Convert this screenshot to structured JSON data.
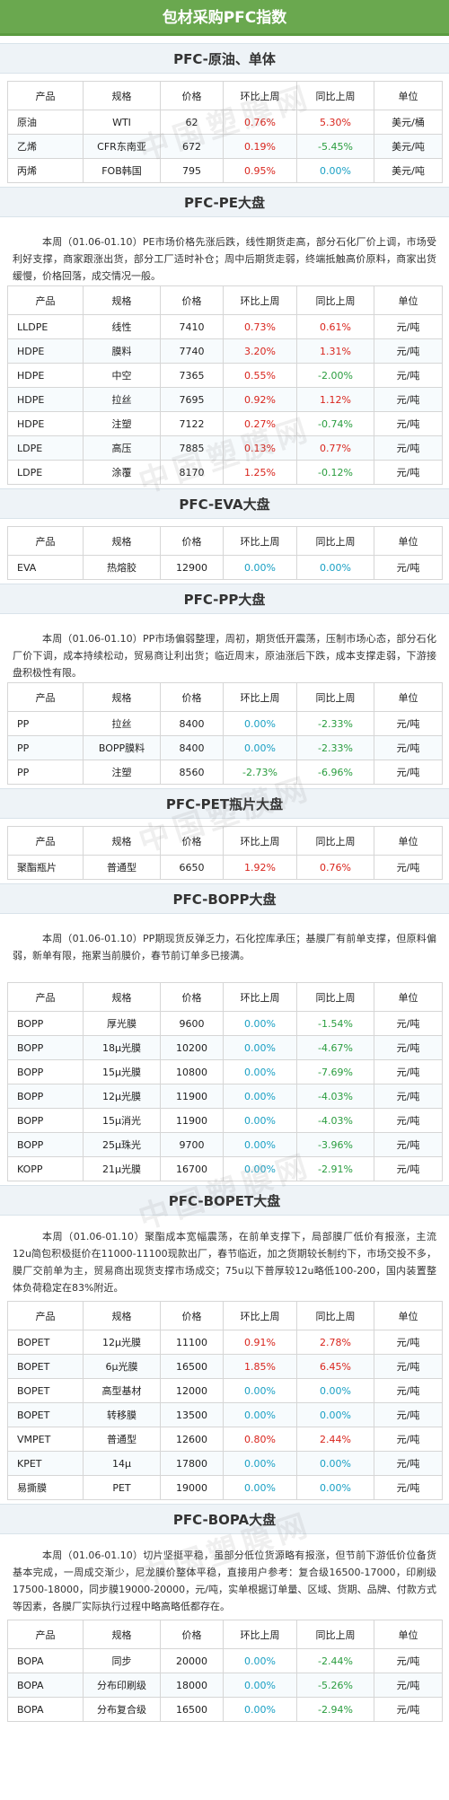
{
  "title": "包材采购PFC指数",
  "watermark_text": "中国塑膜网",
  "columns": [
    "产品",
    "规格",
    "价格",
    "环比上周",
    "同比上周",
    "单位"
  ],
  "sections": [
    {
      "title": "PFC-原油、单体",
      "para": "",
      "rows": [
        [
          "原油",
          "WTI",
          "62",
          "0.76%",
          "5.30%",
          "美元/桶"
        ],
        [
          "乙烯",
          "CFR东南亚",
          "672",
          "0.19%",
          "-5.45%",
          "美元/吨"
        ],
        [
          "丙烯",
          "FOB韩国",
          "795",
          "0.95%",
          "0.00%",
          "美元/吨"
        ]
      ]
    },
    {
      "title": "PFC-PE大盘",
      "para": "本周（01.06-01.10）PE市场价格先涨后跌，线性期货走高，部分石化厂价上调，市场受利好支撑，商家跟涨出货，部分工厂适时补仓；周中后期货走弱，终端抵触高价原料，商家出货缓慢，价格回落，成交情况一般。",
      "rows": [
        [
          "LLDPE",
          "线性",
          "7410",
          "0.73%",
          "0.61%",
          "元/吨"
        ],
        [
          "HDPE",
          "膜料",
          "7740",
          "3.20%",
          "1.31%",
          "元/吨"
        ],
        [
          "HDPE",
          "中空",
          "7365",
          "0.55%",
          "-2.00%",
          "元/吨"
        ],
        [
          "HDPE",
          "拉丝",
          "7695",
          "0.92%",
          "1.12%",
          "元/吨"
        ],
        [
          "HDPE",
          "注塑",
          "7122",
          "0.27%",
          "-0.74%",
          "元/吨"
        ],
        [
          "LDPE",
          "高压",
          "7885",
          "0.13%",
          "0.77%",
          "元/吨"
        ],
        [
          "LDPE",
          "涂覆",
          "8170",
          "1.25%",
          "-0.12%",
          "元/吨"
        ]
      ]
    },
    {
      "title": "PFC-EVA大盘",
      "para": "",
      "rows": [
        [
          "EVA",
          "热熔胶",
          "12900",
          "0.00%",
          "0.00%",
          "元/吨"
        ]
      ]
    },
    {
      "title": "PFC-PP大盘",
      "para": "本周（01.06-01.10）PP市场偏弱整理，周初，期货低开震荡，压制市场心态，部分石化厂价下调，成本持续松动，贸易商让利出货；临近周末，原油涨后下跌，成本支撑走弱，下游接盘积极性有限。",
      "rows": [
        [
          "PP",
          "拉丝",
          "8400",
          "0.00%",
          "-2.33%",
          "元/吨"
        ],
        [
          "PP",
          "BOPP膜料",
          "8400",
          "0.00%",
          "-2.33%",
          "元/吨"
        ],
        [
          "PP",
          "注塑",
          "8560",
          "-2.73%",
          "-6.96%",
          "元/吨"
        ]
      ]
    },
    {
      "title": "PFC-PET瓶片大盘",
      "para": "",
      "rows": [
        [
          "聚酯瓶片",
          "普通型",
          "6650",
          "1.92%",
          "0.76%",
          "元/吨"
        ]
      ]
    },
    {
      "title": "PFC-BOPP大盘",
      "para": "本周（01.06-01.10）PP期现货反弹乏力，石化控库承压；基膜厂有前单支撑，但原料偏弱，新单有限，拖累当前膜价，春节前订单多已接满。",
      "rows": [
        [
          "BOPP",
          "厚光膜",
          "9600",
          "0.00%",
          "-1.54%",
          "元/吨"
        ],
        [
          "BOPP",
          "18μ光膜",
          "10200",
          "0.00%",
          "-4.67%",
          "元/吨"
        ],
        [
          "BOPP",
          "15μ光膜",
          "10800",
          "0.00%",
          "-7.69%",
          "元/吨"
        ],
        [
          "BOPP",
          "12μ光膜",
          "11900",
          "0.00%",
          "-4.03%",
          "元/吨"
        ],
        [
          "BOPP",
          "15μ消光",
          "11900",
          "0.00%",
          "-4.03%",
          "元/吨"
        ],
        [
          "BOPP",
          "25μ珠光",
          "9700",
          "0.00%",
          "-3.96%",
          "元/吨"
        ],
        [
          "KOPP",
          "21μ光膜",
          "16700",
          "0.00%",
          "-2.91%",
          "元/吨"
        ]
      ]
    },
    {
      "title": "PFC-BOPET大盘",
      "para": "本周（01.06-01.10）聚酯成本宽幅震荡，在前单支撑下，局部膜厂低价有报涨，主流12u简包积极挺价在11000-11100现款出厂，春节临近，加之货期较长制约下，市场交投不多，膜厂交前单为主，贸易商出现货支撑市场成交；75u以下普厚较12u略低100-200，国内装置整体负荷稳定在83%附近。",
      "rows": [
        [
          "BOPET",
          "12μ光膜",
          "11100",
          "0.91%",
          "2.78%",
          "元/吨"
        ],
        [
          "BOPET",
          "6μ光膜",
          "16500",
          "1.85%",
          "6.45%",
          "元/吨"
        ],
        [
          "BOPET",
          "高型基材",
          "12000",
          "0.00%",
          "0.00%",
          "元/吨"
        ],
        [
          "BOPET",
          "转移膜",
          "13500",
          "0.00%",
          "0.00%",
          "元/吨"
        ],
        [
          "VMPET",
          "普通型",
          "12600",
          "0.80%",
          "2.44%",
          "元/吨"
        ],
        [
          "KPET",
          "14μ",
          "17800",
          "0.00%",
          "0.00%",
          "元/吨"
        ],
        [
          "易撕膜",
          "PET",
          "19000",
          "0.00%",
          "0.00%",
          "元/吨"
        ]
      ]
    },
    {
      "title": "PFC-BOPA大盘",
      "para": "本周（01.06-01.10）切片坚挺平稳，虽部分低位货源略有报涨，但节前下游低价位备货基本完成，一周成交渐少，尼龙膜价整体平稳，直接用户参考：复合级16500-17000，印刷级17500-18000，同步膜19000-20000，元/吨，实单根据订单量、区域、货期、品牌、付款方式等因素，各膜厂实际执行过程中略高略低都存在。",
      "rows": [
        [
          "BOPA",
          "同步",
          "20000",
          "0.00%",
          "-2.44%",
          "元/吨"
        ],
        [
          "BOPA",
          "分布印刷级",
          "18000",
          "0.00%",
          "-5.26%",
          "元/吨"
        ],
        [
          "BOPA",
          "分布复合级",
          "16500",
          "0.00%",
          "-2.94%",
          "元/吨"
        ]
      ]
    }
  ],
  "colors": {
    "banner": "#6aa84f",
    "positive": "#d9251d",
    "negative": "#2a9d3f",
    "zero": "#1aa0c4"
  }
}
